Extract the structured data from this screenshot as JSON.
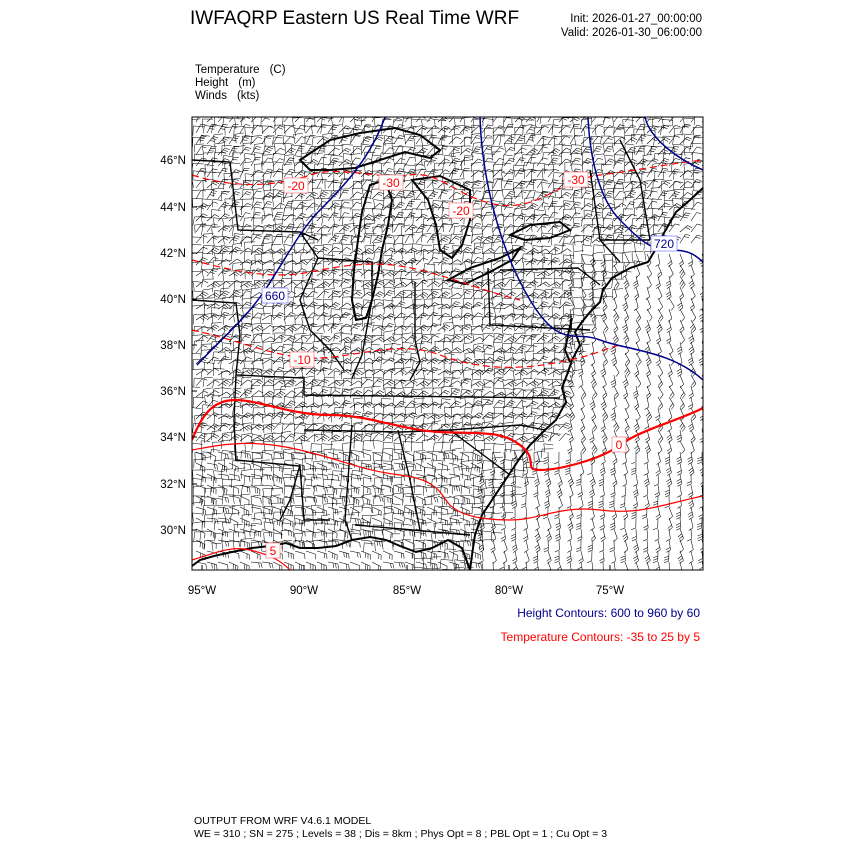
{
  "header": {
    "title": "IWFAQRP Eastern US Real Time WRF",
    "init": "Init: 2026-01-27_00:00:00",
    "valid": "Valid: 2026-01-30_06:00:00"
  },
  "fields": [
    {
      "name": "Temperature",
      "unit": "(C)"
    },
    {
      "name": "Height",
      "unit": "(m)"
    },
    {
      "name": "Winds",
      "unit": "(kts)"
    }
  ],
  "map": {
    "lon_ticks": [
      "95°W",
      "90°W",
      "85°W",
      "80°W",
      "75°W"
    ],
    "lat_ticks": [
      "46°N",
      "44°N",
      "42°N",
      "40°N",
      "38°N",
      "36°N",
      "34°N",
      "32°N",
      "30°N"
    ],
    "extent": {
      "lon": [
        -95.5,
        -70.5
      ],
      "lat": [
        28.3,
        47.8
      ]
    },
    "temperature_labels": [
      "-20",
      "-30",
      "-20",
      "-30",
      "-10",
      "0",
      "5"
    ],
    "height_labels": [
      "660",
      "720"
    ],
    "colors": {
      "height": "#00008b",
      "temperature": "#ff0000",
      "boundaries": "#000000"
    }
  },
  "legend": {
    "height": "Height Contours: 600 to 960 by 60",
    "temperature": "Temperature Contours: -35 to 25 by 5"
  },
  "footer": {
    "line1": "OUTPUT FROM WRF V4.6.1 MODEL",
    "line2": "WE = 310 ; SN = 275 ; Levels = 38 ; Dis = 8km ; Phys Opt = 8 ; PBL Opt = 1 ; Cu Opt = 3"
  }
}
